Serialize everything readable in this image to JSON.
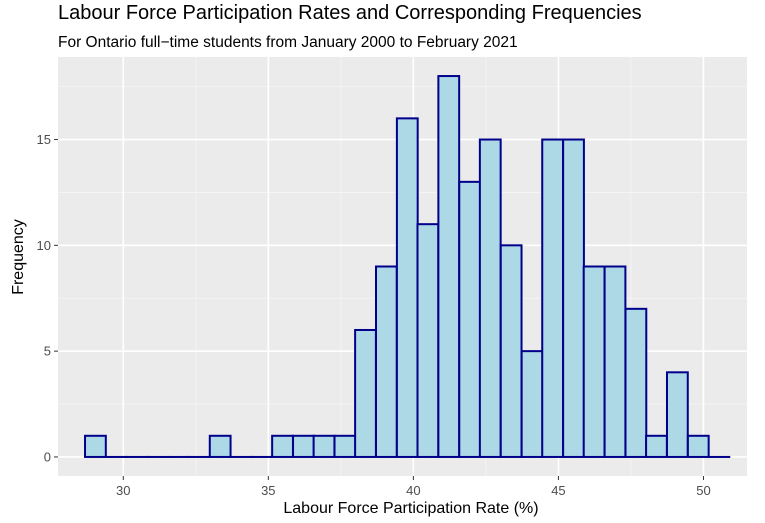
{
  "chart_data": {
    "type": "bar",
    "subtype": "histogram",
    "title": "Labour Force Participation Rates and Corresponding Frequencies",
    "subtitle": "For Ontario full−time students from January 2000 to February 2021",
    "xlabel": "Labour Force Participation Rate (%)",
    "ylabel": "Frequency",
    "xlim": [
      27.75,
      51.5
    ],
    "ylim": [
      -0.9,
      18.9
    ],
    "x_ticks": [
      30,
      35,
      40,
      45,
      50
    ],
    "x_tick_labels": [
      "30",
      "35",
      "40",
      "45",
      "50"
    ],
    "y_ticks": [
      0,
      5,
      10,
      15
    ],
    "y_tick_labels": [
      "0",
      "5",
      "10",
      "15"
    ],
    "bin_width": 0.7165,
    "bin_centers": [
      29.04,
      29.76,
      30.48,
      31.19,
      31.91,
      32.62,
      33.34,
      34.06,
      34.77,
      35.49,
      36.21,
      36.92,
      37.64,
      38.35,
      39.07,
      39.79,
      40.5,
      41.22,
      41.94,
      42.65,
      43.37,
      44.09,
      44.8,
      45.52,
      46.23,
      46.95,
      47.67,
      48.38,
      49.1,
      49.82,
      50.53
    ],
    "values": [
      1,
      0,
      0,
      0,
      0,
      0,
      1,
      0,
      0,
      1,
      1,
      1,
      1,
      6,
      9,
      16,
      11,
      18,
      13,
      15,
      10,
      5,
      15,
      15,
      9,
      9,
      7,
      1,
      4,
      1,
      0
    ],
    "grid": true,
    "legend": "none",
    "colors": {
      "panel_background": "#ebebeb",
      "grid_major": "#ffffff",
      "grid_minor": "#f5f5f5",
      "bar_fill": "#add8e6",
      "bar_stroke": "#00008b",
      "tick_mark": "#333333"
    }
  }
}
